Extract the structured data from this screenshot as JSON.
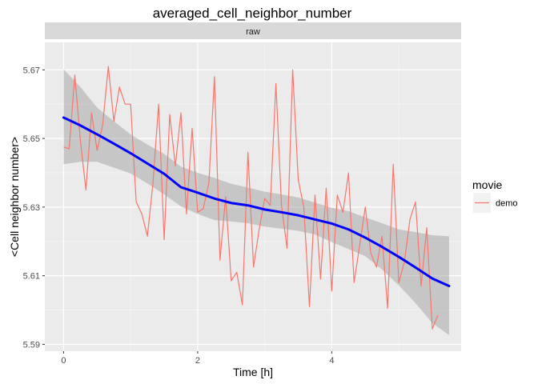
{
  "chart_data": {
    "type": "line",
    "title": "averaged_cell_neighbor_number",
    "facet_label": "raw",
    "xlabel": "Time [h]",
    "ylabel": "<Cell neighbor number>",
    "xlim": [
      -0.28,
      5.93
    ],
    "ylim": [
      5.588,
      5.678
    ],
    "x_ticks": [
      0,
      2,
      4
    ],
    "x_tick_labels": [
      "0",
      "2",
      "4"
    ],
    "y_ticks": [
      5.59,
      5.61,
      5.63,
      5.65,
      5.67
    ],
    "y_tick_labels": [
      "5.59",
      "5.61",
      "5.63",
      "5.65",
      "5.67"
    ],
    "grid": true,
    "legend": {
      "title": "movie",
      "position": "right",
      "entries": [
        "demo"
      ]
    },
    "series": [
      {
        "name": "demo",
        "color": "#F8766D",
        "x": [
          0.0,
          0.083,
          0.167,
          0.25,
          0.333,
          0.417,
          0.5,
          0.583,
          0.667,
          0.75,
          0.833,
          0.917,
          1.0,
          1.083,
          1.167,
          1.25,
          1.333,
          1.417,
          1.5,
          1.583,
          1.667,
          1.75,
          1.833,
          1.917,
          2.0,
          2.083,
          2.167,
          2.25,
          2.333,
          2.417,
          2.5,
          2.583,
          2.667,
          2.75,
          2.833,
          2.917,
          3.0,
          3.083,
          3.167,
          3.25,
          3.333,
          3.417,
          3.5,
          3.583,
          3.667,
          3.75,
          3.833,
          3.917,
          4.0,
          4.083,
          4.167,
          4.25,
          4.333,
          4.417,
          4.5,
          4.583,
          4.667,
          4.75,
          4.833,
          4.917,
          5.0,
          5.083,
          5.167,
          5.25,
          5.333,
          5.417,
          5.5,
          5.583
        ],
        "y": [
          5.6475,
          5.647,
          5.6685,
          5.6495,
          5.635,
          5.6575,
          5.6465,
          5.654,
          5.671,
          5.655,
          5.665,
          5.66,
          5.66,
          5.6315,
          5.628,
          5.6215,
          5.637,
          5.66,
          5.6205,
          5.657,
          5.642,
          5.6575,
          5.628,
          5.653,
          5.6285,
          5.6295,
          5.637,
          5.668,
          5.6145,
          5.633,
          5.6085,
          5.611,
          5.6015,
          5.646,
          5.6125,
          5.6235,
          5.6325,
          5.6305,
          5.666,
          5.6305,
          5.618,
          5.67,
          5.638,
          5.63,
          5.601,
          5.6335,
          5.609,
          5.6355,
          5.6055,
          5.6335,
          5.6285,
          5.64,
          5.608,
          5.619,
          5.63,
          5.6165,
          5.6125,
          5.6215,
          5.6005,
          5.6425,
          5.608,
          5.614,
          5.6265,
          5.6315,
          5.607,
          5.624,
          5.5945,
          5.5985
        ]
      },
      {
        "name": "smooth",
        "color": "#0000FF",
        "x": [
          0.0,
          0.25,
          0.5,
          0.75,
          1.0,
          1.25,
          1.5,
          1.75,
          2.0,
          2.25,
          2.5,
          2.75,
          3.0,
          3.25,
          3.5,
          3.75,
          4.0,
          4.25,
          4.5,
          4.75,
          5.0,
          5.25,
          5.5,
          5.75
        ],
        "y": [
          5.6561,
          5.6538,
          5.6512,
          5.6485,
          5.6457,
          5.6427,
          5.6397,
          5.6358,
          5.6342,
          5.6325,
          5.6312,
          5.6305,
          5.6293,
          5.6285,
          5.6276,
          5.6264,
          5.6252,
          5.6235,
          5.6211,
          5.6184,
          5.6155,
          5.6124,
          5.6092,
          5.607
        ],
        "ci_low": [
          5.6425,
          5.6432,
          5.6432,
          5.6415,
          5.6398,
          5.6369,
          5.6337,
          5.6302,
          5.628,
          5.6262,
          5.6258,
          5.6253,
          5.6243,
          5.6237,
          5.6231,
          5.622,
          5.6198,
          5.6178,
          5.6157,
          5.6118,
          5.6072,
          5.602,
          5.5962,
          5.5927
        ],
        "ci_high": [
          5.6702,
          5.665,
          5.659,
          5.655,
          5.6512,
          5.6482,
          5.6455,
          5.6418,
          5.64,
          5.6385,
          5.6368,
          5.6357,
          5.6345,
          5.6337,
          5.6328,
          5.6313,
          5.6298,
          5.6288,
          5.627,
          5.6253,
          5.6235,
          5.6227,
          5.6218,
          5.6215
        ]
      }
    ]
  }
}
